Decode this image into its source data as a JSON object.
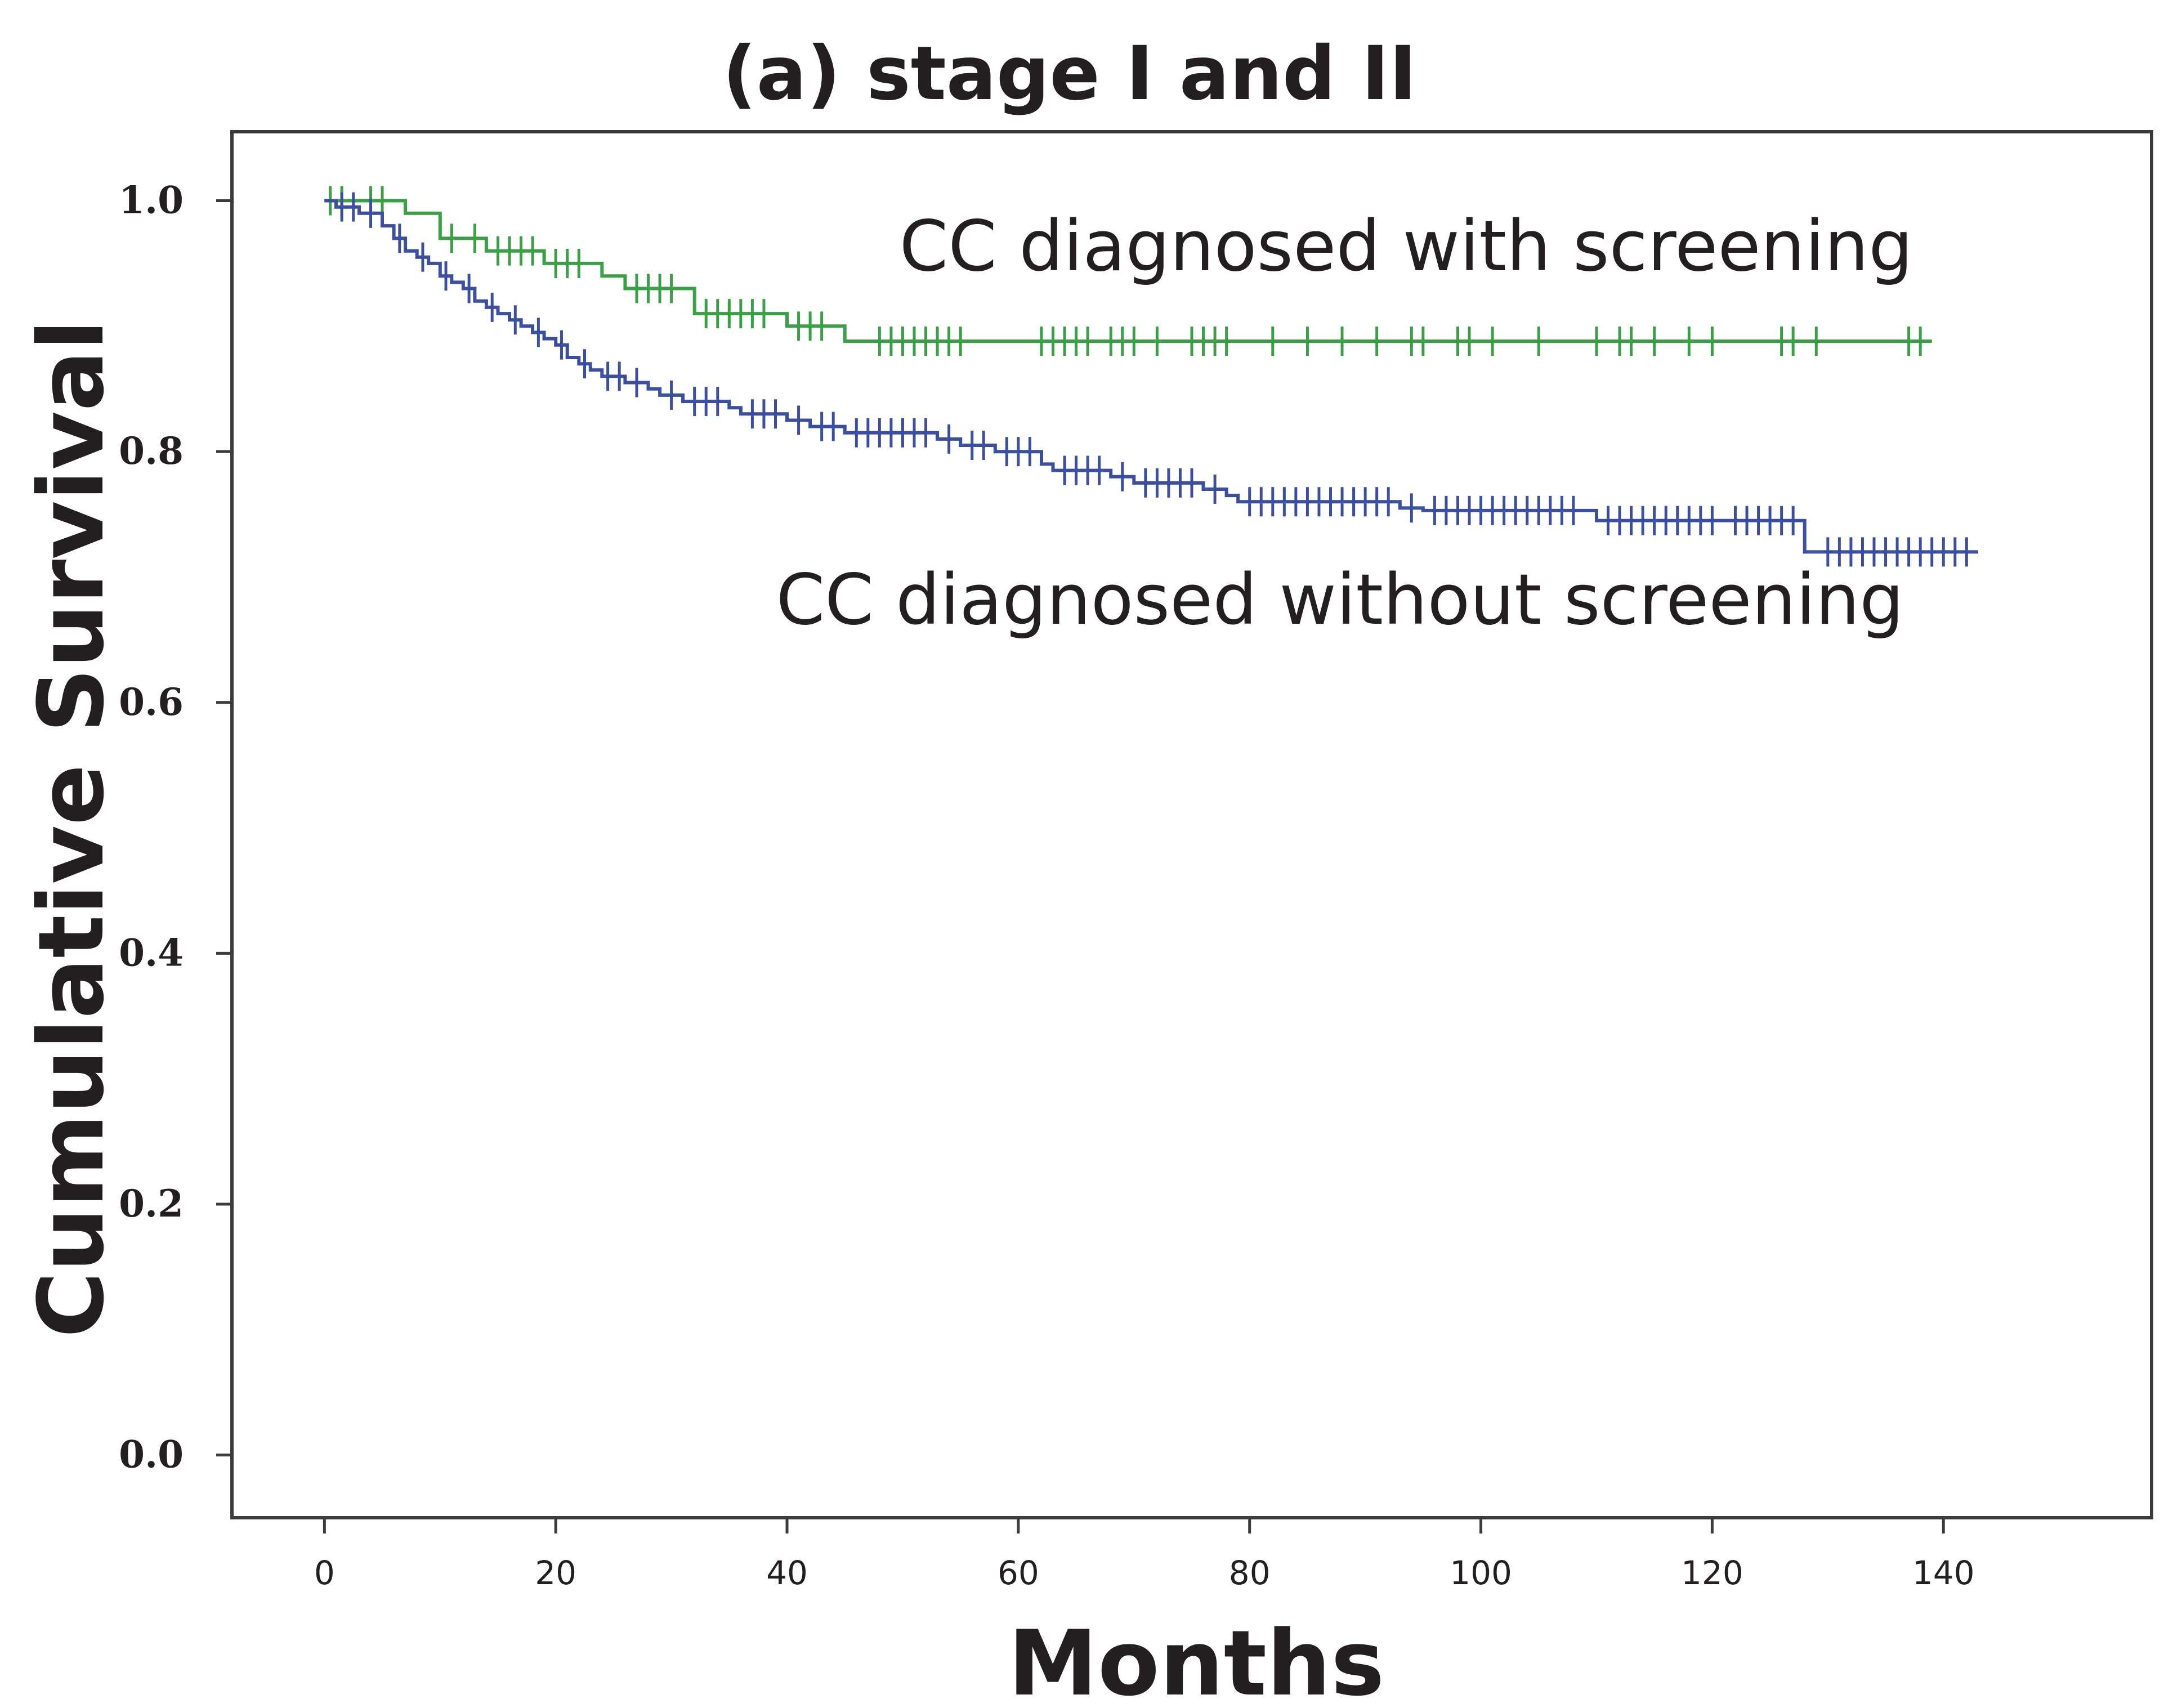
{
  "chart_data": {
    "type": "line",
    "subtype": "kaplan-meier",
    "title": "(a) stage I and II",
    "xlabel": "Months",
    "ylabel": "Cumulative Survival",
    "xlim": [
      -8,
      158
    ],
    "ylim": [
      -0.05,
      1.055
    ],
    "xticks": [
      0,
      20,
      40,
      60,
      80,
      100,
      120,
      140
    ],
    "xtick_labels": [
      "0",
      "20",
      "40",
      "60",
      "80",
      "100",
      "120",
      "140"
    ],
    "yticks": [
      0.0,
      0.2,
      0.4,
      0.6,
      0.8,
      1.0
    ],
    "ytick_labels": [
      "0.0",
      "0.2",
      "0.4",
      "0.6",
      "0.8",
      "1.0"
    ],
    "grid": false,
    "series": [
      {
        "name": "CC diagnosed with screening",
        "color": "#3aa045",
        "steps": [
          [
            0,
            1.0
          ],
          [
            7,
            0.99
          ],
          [
            10,
            0.97
          ],
          [
            14,
            0.96
          ],
          [
            19,
            0.95
          ],
          [
            24,
            0.94
          ],
          [
            26,
            0.93
          ],
          [
            32,
            0.91
          ],
          [
            40,
            0.9
          ],
          [
            45,
            0.888
          ],
          [
            139,
            0.888
          ]
        ],
        "censored": [
          [
            0.5,
            1.0
          ],
          [
            1.5,
            1.0
          ],
          [
            4,
            1.0
          ],
          [
            5,
            1.0
          ],
          [
            11,
            0.97
          ],
          [
            13,
            0.97
          ],
          [
            15,
            0.96
          ],
          [
            16,
            0.96
          ],
          [
            17,
            0.96
          ],
          [
            18,
            0.96
          ],
          [
            20,
            0.95
          ],
          [
            21,
            0.95
          ],
          [
            22,
            0.95
          ],
          [
            27,
            0.93
          ],
          [
            28,
            0.93
          ],
          [
            29,
            0.93
          ],
          [
            30,
            0.93
          ],
          [
            33,
            0.91
          ],
          [
            34,
            0.91
          ],
          [
            35,
            0.91
          ],
          [
            36,
            0.91
          ],
          [
            37,
            0.91
          ],
          [
            38,
            0.91
          ],
          [
            41,
            0.9
          ],
          [
            42,
            0.9
          ],
          [
            43,
            0.9
          ],
          [
            48,
            0.888
          ],
          [
            49,
            0.888
          ],
          [
            50,
            0.888
          ],
          [
            51,
            0.888
          ],
          [
            52,
            0.888
          ],
          [
            53,
            0.888
          ],
          [
            54,
            0.888
          ],
          [
            55,
            0.888
          ],
          [
            62,
            0.888
          ],
          [
            63,
            0.888
          ],
          [
            64,
            0.888
          ],
          [
            65,
            0.888
          ],
          [
            66,
            0.888
          ],
          [
            68,
            0.888
          ],
          [
            69,
            0.888
          ],
          [
            70,
            0.888
          ],
          [
            72,
            0.888
          ],
          [
            75,
            0.888
          ],
          [
            76,
            0.888
          ],
          [
            77,
            0.888
          ],
          [
            78,
            0.888
          ],
          [
            82,
            0.888
          ],
          [
            85,
            0.888
          ],
          [
            88,
            0.888
          ],
          [
            91,
            0.888
          ],
          [
            94,
            0.888
          ],
          [
            95,
            0.888
          ],
          [
            98,
            0.888
          ],
          [
            99,
            0.888
          ],
          [
            101,
            0.888
          ],
          [
            105,
            0.888
          ],
          [
            110,
            0.888
          ],
          [
            112,
            0.888
          ],
          [
            113,
            0.888
          ],
          [
            115,
            0.888
          ],
          [
            118,
            0.888
          ],
          [
            120,
            0.888
          ],
          [
            126,
            0.888
          ],
          [
            127,
            0.888
          ],
          [
            129,
            0.888
          ],
          [
            137,
            0.888
          ],
          [
            138,
            0.888
          ]
        ]
      },
      {
        "name": "CC diagnosed without screening",
        "color": "#3a4fa2",
        "steps": [
          [
            0,
            1.0
          ],
          [
            1,
            0.995
          ],
          [
            3,
            0.99
          ],
          [
            5,
            0.98
          ],
          [
            6,
            0.97
          ],
          [
            7,
            0.96
          ],
          [
            8,
            0.955
          ],
          [
            9,
            0.95
          ],
          [
            10,
            0.94
          ],
          [
            11,
            0.935
          ],
          [
            12,
            0.93
          ],
          [
            13,
            0.92
          ],
          [
            14,
            0.915
          ],
          [
            15,
            0.91
          ],
          [
            16,
            0.905
          ],
          [
            17,
            0.9
          ],
          [
            18,
            0.895
          ],
          [
            19,
            0.89
          ],
          [
            20,
            0.885
          ],
          [
            21,
            0.875
          ],
          [
            22,
            0.87
          ],
          [
            23,
            0.865
          ],
          [
            24,
            0.86
          ],
          [
            26,
            0.855
          ],
          [
            28,
            0.85
          ],
          [
            29,
            0.845
          ],
          [
            31,
            0.84
          ],
          [
            35,
            0.835
          ],
          [
            36,
            0.83
          ],
          [
            40,
            0.825
          ],
          [
            42,
            0.82
          ],
          [
            45,
            0.815
          ],
          [
            53,
            0.81
          ],
          [
            55,
            0.805
          ],
          [
            58,
            0.8
          ],
          [
            62,
            0.79
          ],
          [
            63,
            0.785
          ],
          [
            68,
            0.78
          ],
          [
            70,
            0.775
          ],
          [
            76,
            0.77
          ],
          [
            78,
            0.765
          ],
          [
            79,
            0.76
          ],
          [
            93,
            0.755
          ],
          [
            95,
            0.753
          ],
          [
            110,
            0.745
          ],
          [
            128,
            0.72
          ],
          [
            143,
            0.72
          ]
        ],
        "censored": [
          [
            1.5,
            0.995
          ],
          [
            2.5,
            0.995
          ],
          [
            4,
            0.99
          ],
          [
            6.5,
            0.97
          ],
          [
            8.5,
            0.955
          ],
          [
            10.5,
            0.94
          ],
          [
            12.5,
            0.93
          ],
          [
            14.5,
            0.915
          ],
          [
            16.5,
            0.905
          ],
          [
            18.5,
            0.895
          ],
          [
            20.5,
            0.885
          ],
          [
            22.5,
            0.87
          ],
          [
            24.5,
            0.86
          ],
          [
            25.5,
            0.86
          ],
          [
            27,
            0.855
          ],
          [
            30,
            0.845
          ],
          [
            32,
            0.84
          ],
          [
            33,
            0.84
          ],
          [
            34,
            0.84
          ],
          [
            37,
            0.83
          ],
          [
            38,
            0.83
          ],
          [
            39,
            0.83
          ],
          [
            41,
            0.825
          ],
          [
            43,
            0.82
          ],
          [
            44,
            0.82
          ],
          [
            46,
            0.815
          ],
          [
            47,
            0.815
          ],
          [
            48,
            0.815
          ],
          [
            49,
            0.815
          ],
          [
            50,
            0.815
          ],
          [
            51,
            0.815
          ],
          [
            52,
            0.815
          ],
          [
            54,
            0.81
          ],
          [
            56,
            0.805
          ],
          [
            57,
            0.805
          ],
          [
            59,
            0.8
          ],
          [
            60,
            0.8
          ],
          [
            61,
            0.8
          ],
          [
            64,
            0.785
          ],
          [
            65,
            0.785
          ],
          [
            66,
            0.785
          ],
          [
            67,
            0.785
          ],
          [
            69,
            0.78
          ],
          [
            71,
            0.775
          ],
          [
            72,
            0.775
          ],
          [
            73,
            0.775
          ],
          [
            74,
            0.775
          ],
          [
            75,
            0.775
          ],
          [
            77,
            0.77
          ],
          [
            80,
            0.76
          ],
          [
            81,
            0.76
          ],
          [
            82,
            0.76
          ],
          [
            83,
            0.76
          ],
          [
            84,
            0.76
          ],
          [
            85,
            0.76
          ],
          [
            86,
            0.76
          ],
          [
            87,
            0.76
          ],
          [
            88,
            0.76
          ],
          [
            89,
            0.76
          ],
          [
            90,
            0.76
          ],
          [
            91,
            0.76
          ],
          [
            92,
            0.76
          ],
          [
            94,
            0.755
          ],
          [
            96,
            0.753
          ],
          [
            97,
            0.753
          ],
          [
            98,
            0.753
          ],
          [
            99,
            0.753
          ],
          [
            100,
            0.753
          ],
          [
            101,
            0.753
          ],
          [
            102,
            0.753
          ],
          [
            103,
            0.753
          ],
          [
            104,
            0.753
          ],
          [
            105,
            0.753
          ],
          [
            106,
            0.753
          ],
          [
            107,
            0.753
          ],
          [
            108,
            0.753
          ],
          [
            111,
            0.745
          ],
          [
            112,
            0.745
          ],
          [
            113,
            0.745
          ],
          [
            114,
            0.745
          ],
          [
            115,
            0.745
          ],
          [
            116,
            0.745
          ],
          [
            117,
            0.745
          ],
          [
            118,
            0.745
          ],
          [
            119,
            0.745
          ],
          [
            120,
            0.745
          ],
          [
            122,
            0.745
          ],
          [
            123,
            0.745
          ],
          [
            124,
            0.745
          ],
          [
            125,
            0.745
          ],
          [
            126,
            0.745
          ],
          [
            127,
            0.745
          ],
          [
            130,
            0.72
          ],
          [
            131,
            0.72
          ],
          [
            132,
            0.72
          ],
          [
            133,
            0.72
          ],
          [
            134,
            0.72
          ],
          [
            135,
            0.72
          ],
          [
            136,
            0.72
          ],
          [
            137,
            0.72
          ],
          [
            138,
            0.72
          ],
          [
            139,
            0.72
          ],
          [
            140,
            0.72
          ],
          [
            141,
            0.72
          ],
          [
            142,
            0.72
          ]
        ]
      }
    ],
    "annotations": [
      {
        "text": "CC diagnosed with screening",
        "series": "CC diagnosed with screening"
      },
      {
        "text": "CC diagnosed without screening",
        "series": "CC diagnosed without screening"
      }
    ]
  }
}
